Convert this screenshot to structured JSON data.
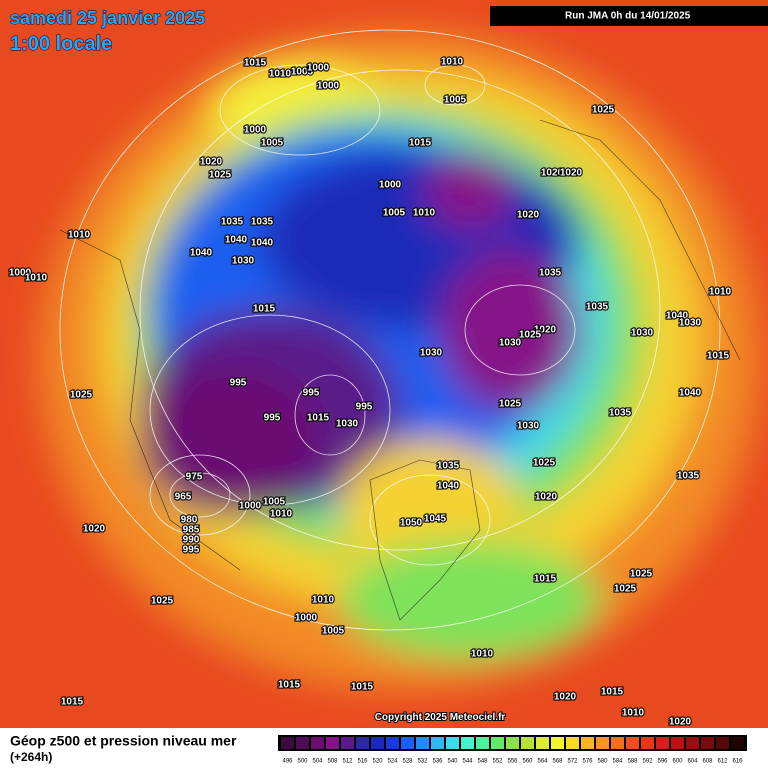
{
  "header": {
    "date": "samedi 25 janvier 2025",
    "time": "1:00 locale",
    "run": "Run JMA 0h du 14/01/2025"
  },
  "copyright": "Copyright 2025 Meteociel.fr",
  "footer": {
    "title": "Géop z500 et pression niveau mer",
    "lead": "(+264h)"
  },
  "isobar_labels": [
    "1015",
    "1010",
    "1005",
    "1000",
    "1000",
    "1010",
    "1005",
    "1000",
    "1005",
    "1015",
    "1025",
    "1020",
    "1025",
    "1000",
    "1005",
    "1010",
    "1020",
    "1020",
    "1020",
    "1035",
    "1035",
    "1040",
    "1040",
    "1010",
    "1040",
    "1030",
    "1035",
    "1000",
    "1010",
    "1015",
    "1035",
    "1020",
    "1025",
    "1030",
    "1030",
    "1030",
    "1040",
    "1030",
    "1010",
    "995",
    "995",
    "1025",
    "995",
    "995",
    "1015",
    "1030",
    "1025",
    "1030",
    "1035",
    "1015",
    "1040",
    "1035",
    "1040",
    "1025",
    "1020",
    "975",
    "965",
    "1005",
    "1000",
    "1010",
    "980",
    "985",
    "990",
    "995",
    "1050",
    "1045",
    "1020",
    "1035",
    "1025",
    "1015",
    "1025",
    "1025",
    "1010",
    "1000",
    "1005",
    "1010",
    "1015",
    "1015",
    "1020",
    "1015",
    "1015",
    "1010",
    "1020"
  ],
  "legend": {
    "values": [
      496,
      500,
      504,
      508,
      512,
      516,
      520,
      524,
      528,
      532,
      536,
      540,
      544,
      548,
      552,
      556,
      560,
      564,
      568,
      572,
      576,
      580,
      584,
      588,
      592,
      596,
      600,
      604,
      608,
      612,
      616
    ],
    "colors": [
      "#3a0a40",
      "#4e0c58",
      "#6a0f72",
      "#861288",
      "#5a1a8a",
      "#2a2a9a",
      "#1a2ab8",
      "#1a3ad8",
      "#1e5ef0",
      "#2a8af5",
      "#36b4f5",
      "#44d8ee",
      "#4cf0cc",
      "#52f09a",
      "#62e86a",
      "#8ae050",
      "#b4e040",
      "#dcea3c",
      "#f5f03a",
      "#f8d832",
      "#f8b42c",
      "#f59428",
      "#f07024",
      "#ec5020",
      "#e6361c",
      "#d42018",
      "#b81414",
      "#961010",
      "#760c0c",
      "#540808",
      "#200404"
    ]
  }
}
